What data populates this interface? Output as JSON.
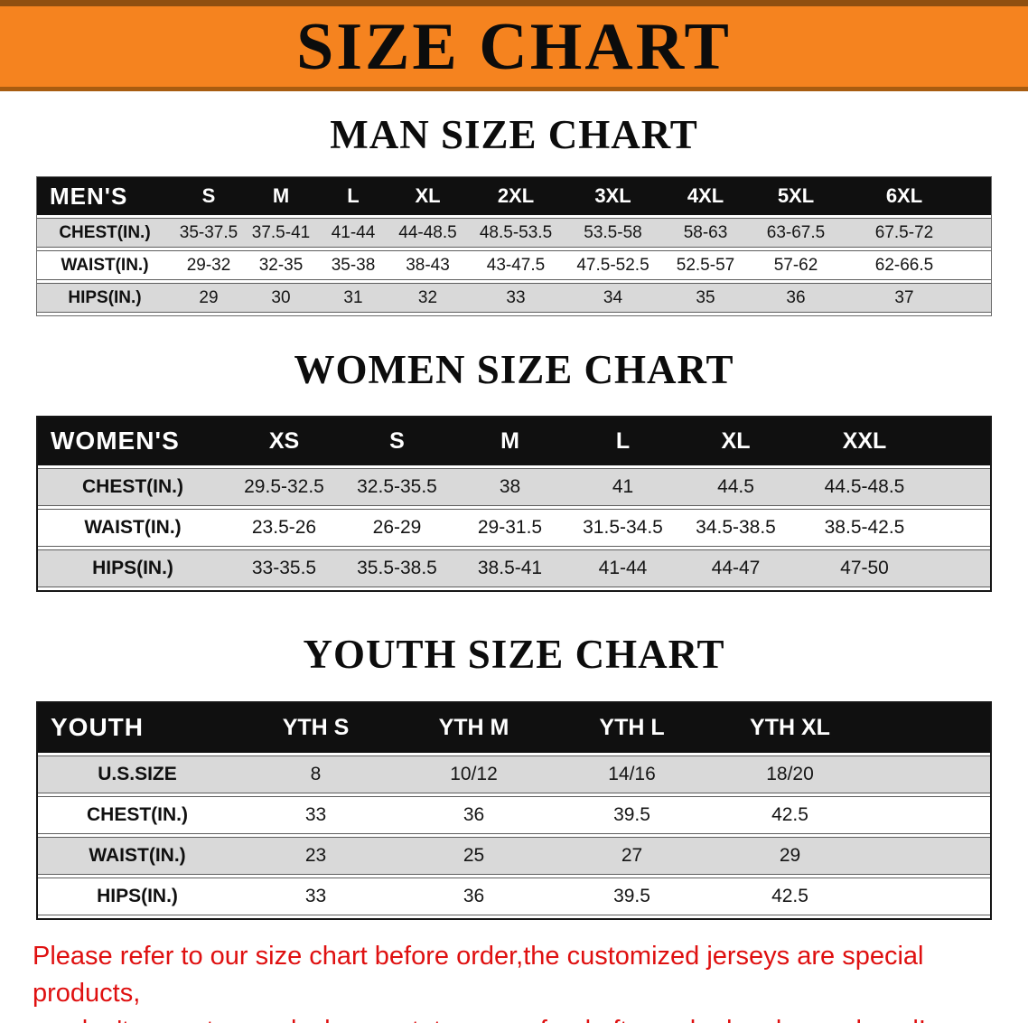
{
  "banner": {
    "title": "SIZE CHART"
  },
  "colors": {
    "banner_orange": "#f5831f",
    "table_header_black": "#101010",
    "row_gray": "#d9d9d9",
    "notice_red": "#df1010"
  },
  "sections": {
    "men": {
      "heading": "MAN SIZE CHART",
      "table": {
        "corner": "MEN'S",
        "sizes": [
          "S",
          "M",
          "L",
          "XL",
          "2XL",
          "3XL",
          "4XL",
          "5XL",
          "6XL"
        ],
        "rows": [
          {
            "label": "CHEST(IN.)",
            "values": [
              "35-37.5",
              "37.5-41",
              "41-44",
              "44-48.5",
              "48.5-53.5",
              "53.5-58",
              "58-63",
              "63-67.5",
              "67.5-72"
            ]
          },
          {
            "label": "WAIST(IN.)",
            "values": [
              "29-32",
              "32-35",
              "35-38",
              "38-43",
              "43-47.5",
              "47.5-52.5",
              "52.5-57",
              "57-62",
              "62-66.5"
            ]
          },
          {
            "label": "HIPS(IN.)",
            "values": [
              "29",
              "30",
              "31",
              "32",
              "33",
              "34",
              "35",
              "36",
              "37"
            ]
          }
        ]
      }
    },
    "women": {
      "heading": "WOMEN SIZE CHART",
      "table": {
        "corner": "WOMEN'S",
        "sizes": [
          "XS",
          "S",
          "M",
          "L",
          "XL",
          "XXL"
        ],
        "rows": [
          {
            "label": "CHEST(IN.)",
            "values": [
              "29.5-32.5",
              "32.5-35.5",
              "38",
              "41",
              "44.5",
              "44.5-48.5"
            ]
          },
          {
            "label": "WAIST(IN.)",
            "values": [
              "23.5-26",
              "26-29",
              "29-31.5",
              "31.5-34.5",
              "34.5-38.5",
              "38.5-42.5"
            ]
          },
          {
            "label": "HIPS(IN.)",
            "values": [
              "33-35.5",
              "35.5-38.5",
              "38.5-41",
              "41-44",
              "44-47",
              "47-50"
            ]
          }
        ]
      }
    },
    "youth": {
      "heading": "YOUTH SIZE CHART",
      "table": {
        "corner": "YOUTH",
        "sizes": [
          "YTH S",
          "YTH M",
          "YTH L",
          "YTH XL"
        ],
        "rows": [
          {
            "label": "U.S.SIZE",
            "values": [
              "8",
              "10/12",
              "14/16",
              "18/20"
            ]
          },
          {
            "label": "CHEST(IN.)",
            "values": [
              "33",
              "36",
              "39.5",
              "42.5"
            ]
          },
          {
            "label": "WAIST(IN.)",
            "values": [
              "23",
              "25",
              "27",
              "29"
            ]
          },
          {
            "label": "HIPS(IN.)",
            "values": [
              "33",
              "36",
              "39.5",
              "42.5"
            ]
          }
        ]
      }
    }
  },
  "notice": {
    "line1": "Please refer to our size chart before order,the customized jerseys are special products,",
    "line2": "we don't accept cancel, change, teturn or refund after order has been placed!"
  }
}
